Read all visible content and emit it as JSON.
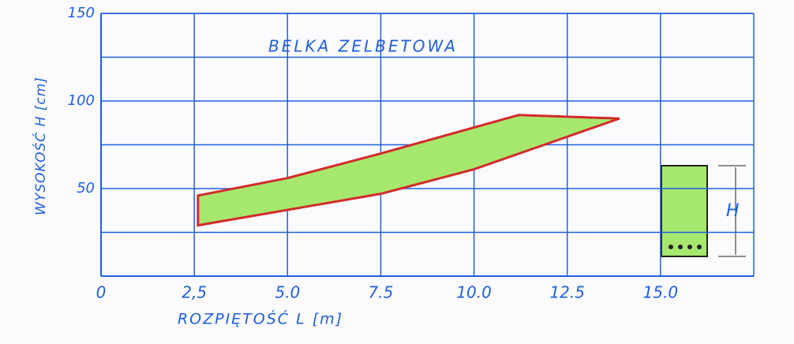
{
  "chart_data": {
    "type": "polygon",
    "title": "BELKA ZELBETOWA",
    "x_label": "ROZPIĘTOŚĆ L [m]",
    "y_label": "WYSOKOŚĆ H [cm]",
    "x": [
      2.6,
      5,
      7.5,
      11.2,
      13.9,
      10,
      7.5,
      2.6
    ],
    "series": [
      {
        "color": "#d42a2a",
        "fill": "#a6e86e",
        "values": [
          46,
          56,
          70,
          92,
          90,
          61,
          47,
          29
        ]
      }
    ],
    "xlim": [
      0,
      17.5
    ],
    "ylim": [
      0,
      150
    ],
    "xticks": [
      0,
      {
        "value": 2.5,
        "label": "2,5"
      },
      {
        "value": 5,
        "label": "5.0"
      },
      {
        "value": 7.5,
        "label": "7.5"
      },
      {
        "value": 10,
        "label": "10.0"
      },
      {
        "value": 12.5,
        "label": "12.5"
      },
      {
        "value": 15,
        "label": "15.0"
      }
    ],
    "yticks": [
      50,
      100,
      150
    ],
    "y_minor_ticks": [
      25,
      75,
      125
    ],
    "grid": true,
    "axis_color": "#1f5fe0",
    "inset_label": "H"
  }
}
